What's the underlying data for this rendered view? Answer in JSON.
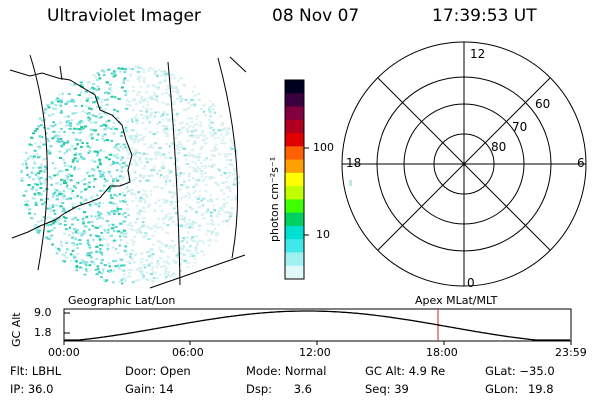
{
  "header": {
    "title": "Ultraviolet Imager",
    "date": "08 Nov 07",
    "time": "17:39:53 UT"
  },
  "colorbar": {
    "label": "photon cm⁻²s⁻¹",
    "ticks": [
      "100",
      "10"
    ],
    "colors": [
      "#000020",
      "#3a0040",
      "#800040",
      "#b00020",
      "#e00000",
      "#ff6000",
      "#ffa000",
      "#ffff00",
      "#c0ff00",
      "#40ff00",
      "#00d060",
      "#00e0d0",
      "#40e8e8",
      "#a0f0f0",
      "#e0f8f8"
    ]
  },
  "polar": {
    "mlt_labels": [
      "12",
      "18",
      "6",
      "0"
    ],
    "lat_labels": [
      "60",
      "70",
      "80"
    ]
  },
  "panels": {
    "left_caption": "Geographic Lat/Lon",
    "right_caption": "Apex MLat/MLT"
  },
  "altitude_plot": {
    "ylabel": "GC Alt",
    "yticks": [
      "9.0",
      "1.8"
    ],
    "xticks": [
      "00:00",
      "06:00",
      "12:00",
      "18:00",
      "23:59"
    ],
    "marker_time": "17:39:53"
  },
  "footer": {
    "filter_label": "Flt:",
    "filter_value": "LBHL",
    "ip_label": "IP:",
    "ip_value": "36.0",
    "door_label": "Door:",
    "door_value": "Open",
    "gain_label": "Gain:",
    "gain_value": "14",
    "mode_label": "Mode:",
    "mode_value": "Normal",
    "dsp_label": "Dsp:",
    "dsp_value": "3.6",
    "gcalt_label": "GC Alt:",
    "gcalt_value": "4.9 Re",
    "seq_label": "Seq:",
    "seq_value": "39",
    "glat_label": "GLat:",
    "glat_value": "−35.0",
    "glon_label": "GLon:",
    "glon_value": "19.8"
  }
}
